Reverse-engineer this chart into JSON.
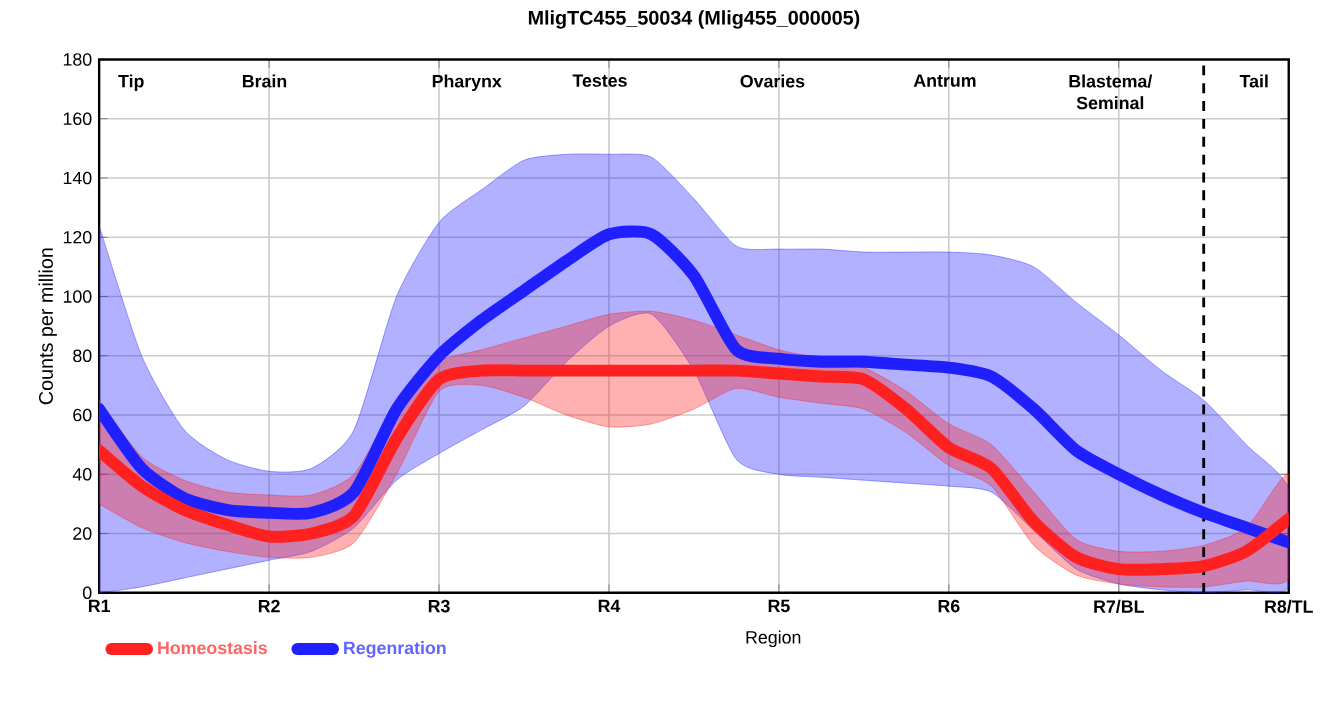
{
  "chart_data": {
    "type": "line",
    "title": "MligTC455_50034 (Mlig455_000005)",
    "xlabel": "Region",
    "ylabel": "Counts per million",
    "categories": [
      "R1",
      null,
      null,
      null,
      "R2",
      null,
      null,
      null,
      "R3",
      null,
      null,
      null,
      "R4",
      null,
      null,
      null,
      "R5",
      null,
      null,
      null,
      "R6",
      null,
      null,
      null,
      "R7/BL",
      null,
      null,
      null,
      "R8/TL"
    ],
    "ylim": [
      0,
      180
    ],
    "yticks": [
      0,
      20,
      40,
      60,
      80,
      100,
      120,
      140,
      160,
      180
    ],
    "grid": true,
    "legend": "bottom left",
    "annotations": [
      "Tip",
      "Brain",
      "Pharynx",
      "Testes",
      "Ovaries",
      "Antrum",
      "Blastema/ Seminal",
      "Tail"
    ],
    "series": [
      {
        "name": "Homeostasis",
        "color": "#ff2020",
        "values": [
          48,
          36,
          28,
          23,
          19,
          20,
          26,
          52,
          72,
          75,
          75,
          75,
          75,
          75,
          75,
          75,
          74,
          73,
          72,
          62,
          49,
          42,
          24,
          12,
          8,
          8,
          9,
          14,
          25
        ],
        "upper": [
          65,
          46,
          38,
          34,
          33,
          33,
          40,
          64,
          78,
          82,
          86,
          90,
          94,
          95,
          92,
          87,
          82,
          79,
          76,
          68,
          57,
          50,
          34,
          18,
          14,
          14,
          16,
          22,
          40
        ],
        "lower": [
          30,
          22,
          17,
          14,
          12,
          12,
          17,
          40,
          68,
          70,
          66,
          60,
          56,
          57,
          62,
          69,
          66,
          64,
          62,
          54,
          43,
          36,
          16,
          6,
          3,
          2,
          2,
          4,
          5
        ]
      },
      {
        "name": "Regenration",
        "color": "#2020ff",
        "values": [
          62,
          42,
          32,
          28,
          27,
          27,
          34,
          62,
          80,
          92,
          102,
          112,
          121,
          121,
          107,
          82,
          79,
          78,
          78,
          77,
          76,
          73,
          62,
          48,
          40,
          33,
          27,
          22,
          17
        ],
        "upper": [
          124,
          80,
          55,
          45,
          41,
          42,
          55,
          100,
          125,
          136,
          146,
          148,
          148,
          147,
          133,
          117,
          116,
          116,
          115,
          115,
          115,
          114,
          110,
          98,
          87,
          75,
          65,
          50,
          35
        ],
        "lower": [
          0,
          2,
          5,
          8,
          11,
          14,
          22,
          38,
          47,
          55,
          63,
          78,
          90,
          94,
          75,
          45,
          40,
          39,
          38,
          37,
          36,
          34,
          21,
          8,
          3,
          1,
          0,
          1,
          2
        ]
      }
    ]
  }
}
